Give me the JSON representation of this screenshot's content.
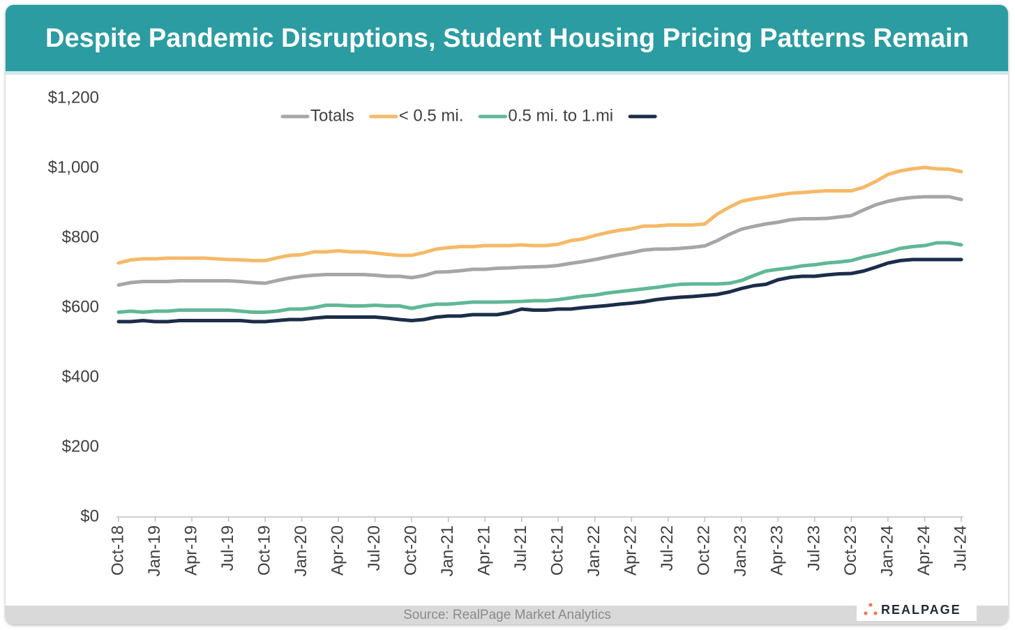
{
  "chart_data": {
    "type": "line",
    "title": "Despite Pandemic Disruptions, Student Housing Pricing Patterns Remain",
    "source": "Source: RealPage Market Analytics",
    "logo": "REALPAGE",
    "legend": "top",
    "grid": false,
    "categories": [
      "Oct-18",
      null,
      null,
      "Jan-19",
      null,
      null,
      "Apr-19",
      null,
      null,
      "Jul-19",
      null,
      null,
      "Oct-19",
      null,
      null,
      "Jan-20",
      null,
      null,
      "Apr-20",
      null,
      null,
      "Jul-20",
      null,
      null,
      "Oct-20",
      null,
      null,
      "Jan-21",
      null,
      null,
      "Apr-21",
      null,
      null,
      "Jul-21",
      null,
      null,
      "Oct-21",
      null,
      null,
      "Jan-22",
      null,
      null,
      "Apr-22",
      null,
      null,
      "Jul-22",
      null,
      null,
      "Oct-22",
      null,
      null,
      "Jan-23",
      null,
      null,
      "Apr-23",
      null,
      null,
      "Jul-23",
      null,
      null,
      "Oct-23",
      null,
      null,
      "Jan-24",
      null,
      null,
      "Apr-24",
      null,
      null,
      "Jul-24"
    ],
    "ylim": [
      0,
      1200
    ],
    "yticks": [
      {
        "value": 0,
        "label": "$0"
      },
      {
        "value": 200,
        "label": "$200"
      },
      {
        "value": 400,
        "label": "$400"
      },
      {
        "value": 600,
        "label": "$600"
      },
      {
        "value": 800,
        "label": "$800"
      },
      {
        "value": 1000,
        "label": "$1,000"
      },
      {
        "value": 1200,
        "label": "$1,200"
      }
    ],
    "series": [
      {
        "name": "Totals",
        "color": "#a6a6a6",
        "values": [
          665,
          672,
          675,
          675,
          675,
          677,
          677,
          677,
          677,
          677,
          675,
          672,
          670,
          678,
          685,
          690,
          693,
          695,
          695,
          695,
          695,
          693,
          690,
          690,
          686,
          692,
          702,
          703,
          706,
          710,
          710,
          713,
          714,
          716,
          717,
          718,
          721,
          727,
          732,
          738,
          745,
          752,
          758,
          765,
          768,
          768,
          770,
          773,
          777,
          792,
          810,
          825,
          833,
          840,
          845,
          852,
          855,
          855,
          856,
          860,
          864,
          880,
          895,
          905,
          912,
          916,
          918,
          918,
          918,
          910
        ]
      },
      {
        "name": "< 0.5 mi.",
        "color": "#f5b967",
        "values": [
          728,
          737,
          740,
          740,
          742,
          742,
          742,
          742,
          740,
          738,
          737,
          735,
          735,
          743,
          750,
          752,
          760,
          760,
          763,
          760,
          760,
          757,
          753,
          750,
          750,
          758,
          768,
          772,
          775,
          775,
          778,
          778,
          778,
          780,
          778,
          778,
          782,
          792,
          797,
          807,
          815,
          822,
          826,
          834,
          834,
          837,
          837,
          837,
          840,
          868,
          888,
          905,
          912,
          917,
          923,
          928,
          930,
          933,
          935,
          935,
          935,
          945,
          962,
          982,
          992,
          998,
          1002,
          998,
          997,
          990
        ]
      },
      {
        "name": "0.5 mi. to 1.mi",
        "color": "#5fb894",
        "values": [
          587,
          590,
          587,
          590,
          590,
          593,
          593,
          593,
          593,
          593,
          590,
          587,
          587,
          590,
          596,
          596,
          600,
          607,
          607,
          605,
          605,
          607,
          605,
          605,
          598,
          605,
          610,
          610,
          613,
          616,
          616,
          616,
          617,
          618,
          620,
          620,
          623,
          628,
          633,
          636,
          642,
          646,
          650,
          654,
          658,
          663,
          667,
          668,
          668,
          668,
          670,
          678,
          692,
          705,
          710,
          714,
          720,
          723,
          728,
          731,
          735,
          745,
          752,
          760,
          770,
          775,
          778,
          786,
          786,
          780
        ]
      },
      {
        "color": "#1c2d4a",
        "values": [
          560,
          560,
          563,
          560,
          560,
          563,
          563,
          563,
          563,
          563,
          563,
          560,
          560,
          563,
          566,
          566,
          570,
          573,
          573,
          573,
          573,
          573,
          570,
          566,
          563,
          566,
          573,
          576,
          576,
          580,
          580,
          580,
          586,
          596,
          593,
          593,
          596,
          596,
          600,
          603,
          606,
          610,
          613,
          617,
          623,
          627,
          630,
          632,
          635,
          638,
          645,
          655,
          663,
          667,
          680,
          687,
          690,
          690,
          694,
          697,
          698,
          705,
          716,
          728,
          735,
          738,
          738,
          738,
          738,
          738
        ]
      }
    ]
  }
}
